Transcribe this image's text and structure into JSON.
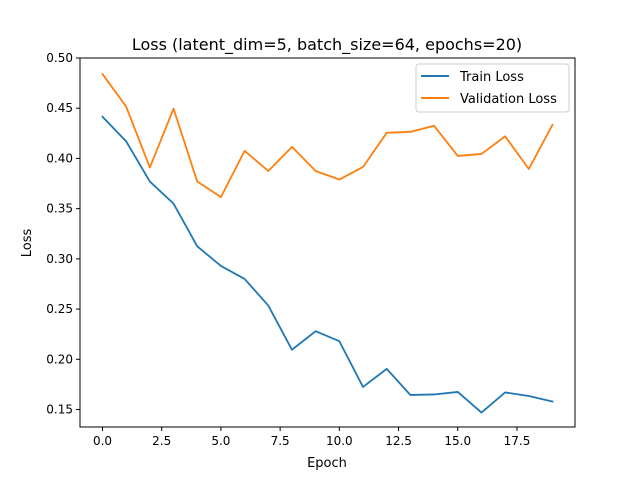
{
  "chart_data": {
    "type": "line",
    "title": "Loss (latent_dim=5, batch_size=64, epochs=20)",
    "xlabel": "Epoch",
    "ylabel": "Loss",
    "xlim": [
      -0.95,
      19.95
    ],
    "ylim": [
      0.1326,
      0.5
    ],
    "grid": false,
    "legend": "top-right",
    "x_ticks": [
      0.0,
      2.5,
      5.0,
      7.5,
      10.0,
      12.5,
      15.0,
      17.5
    ],
    "x_tick_labels": [
      "0.0",
      "2.5",
      "5.0",
      "7.5",
      "10.0",
      "12.5",
      "15.0",
      "17.5"
    ],
    "y_ticks": [
      0.15,
      0.2,
      0.25,
      0.3,
      0.35,
      0.4,
      0.45,
      0.5
    ],
    "y_tick_labels": [
      "0.15",
      "0.20",
      "0.25",
      "0.30",
      "0.35",
      "0.40",
      "0.45",
      "0.50"
    ],
    "x": [
      0,
      1,
      2,
      3,
      4,
      5,
      6,
      7,
      8,
      9,
      10,
      11,
      12,
      13,
      14,
      15,
      16,
      17,
      18,
      19
    ],
    "series": [
      {
        "name": "Train Loss",
        "color": "#1f77b4",
        "values": [
          0.4415,
          0.417,
          0.377,
          0.355,
          0.3125,
          0.293,
          0.28,
          0.2535,
          0.2095,
          0.228,
          0.218,
          0.1725,
          0.1905,
          0.1645,
          0.165,
          0.1675,
          0.147,
          0.167,
          0.1635,
          0.158
        ]
      },
      {
        "name": "Validation Loss",
        "color": "#ff7f0e",
        "values": [
          0.484,
          0.4515,
          0.391,
          0.4495,
          0.377,
          0.3615,
          0.4075,
          0.3875,
          0.4115,
          0.3875,
          0.379,
          0.3915,
          0.4255,
          0.4265,
          0.4325,
          0.4025,
          0.4045,
          0.422,
          0.3895,
          0.4335
        ]
      }
    ]
  }
}
